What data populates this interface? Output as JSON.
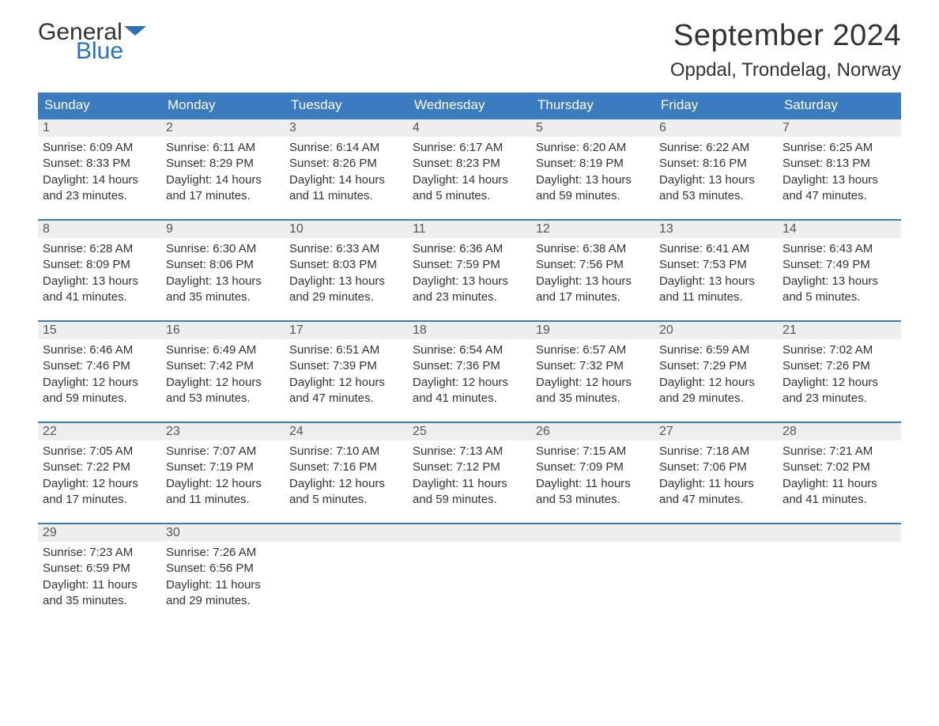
{
  "logo": {
    "text_general": "General",
    "text_blue": "Blue",
    "flag_color": "#2a72b5",
    "general_color": "#333333",
    "blue_color": "#2a72b5"
  },
  "header": {
    "month_title": "September 2024",
    "location": "Oppdal, Trondelag, Norway"
  },
  "colors": {
    "header_bg": "#3b7bbf",
    "header_text": "#ffffff",
    "daynum_bg": "#eeeeee",
    "daynum_text": "#555555",
    "body_text": "#333333",
    "row_border": "#3b7bbf",
    "background": "#ffffff"
  },
  "typography": {
    "month_title_size": 38,
    "location_size": 24,
    "header_cell_size": 17,
    "daynum_size": 16,
    "content_size": 15
  },
  "calendar": {
    "type": "table",
    "days_of_week": [
      "Sunday",
      "Monday",
      "Tuesday",
      "Wednesday",
      "Thursday",
      "Friday",
      "Saturday"
    ],
    "weeks": [
      [
        {
          "num": "1",
          "sunrise": "Sunrise: 6:09 AM",
          "sunset": "Sunset: 8:33 PM",
          "daylight1": "Daylight: 14 hours",
          "daylight2": "and 23 minutes."
        },
        {
          "num": "2",
          "sunrise": "Sunrise: 6:11 AM",
          "sunset": "Sunset: 8:29 PM",
          "daylight1": "Daylight: 14 hours",
          "daylight2": "and 17 minutes."
        },
        {
          "num": "3",
          "sunrise": "Sunrise: 6:14 AM",
          "sunset": "Sunset: 8:26 PM",
          "daylight1": "Daylight: 14 hours",
          "daylight2": "and 11 minutes."
        },
        {
          "num": "4",
          "sunrise": "Sunrise: 6:17 AM",
          "sunset": "Sunset: 8:23 PM",
          "daylight1": "Daylight: 14 hours",
          "daylight2": "and 5 minutes."
        },
        {
          "num": "5",
          "sunrise": "Sunrise: 6:20 AM",
          "sunset": "Sunset: 8:19 PM",
          "daylight1": "Daylight: 13 hours",
          "daylight2": "and 59 minutes."
        },
        {
          "num": "6",
          "sunrise": "Sunrise: 6:22 AM",
          "sunset": "Sunset: 8:16 PM",
          "daylight1": "Daylight: 13 hours",
          "daylight2": "and 53 minutes."
        },
        {
          "num": "7",
          "sunrise": "Sunrise: 6:25 AM",
          "sunset": "Sunset: 8:13 PM",
          "daylight1": "Daylight: 13 hours",
          "daylight2": "and 47 minutes."
        }
      ],
      [
        {
          "num": "8",
          "sunrise": "Sunrise: 6:28 AM",
          "sunset": "Sunset: 8:09 PM",
          "daylight1": "Daylight: 13 hours",
          "daylight2": "and 41 minutes."
        },
        {
          "num": "9",
          "sunrise": "Sunrise: 6:30 AM",
          "sunset": "Sunset: 8:06 PM",
          "daylight1": "Daylight: 13 hours",
          "daylight2": "and 35 minutes."
        },
        {
          "num": "10",
          "sunrise": "Sunrise: 6:33 AM",
          "sunset": "Sunset: 8:03 PM",
          "daylight1": "Daylight: 13 hours",
          "daylight2": "and 29 minutes."
        },
        {
          "num": "11",
          "sunrise": "Sunrise: 6:36 AM",
          "sunset": "Sunset: 7:59 PM",
          "daylight1": "Daylight: 13 hours",
          "daylight2": "and 23 minutes."
        },
        {
          "num": "12",
          "sunrise": "Sunrise: 6:38 AM",
          "sunset": "Sunset: 7:56 PM",
          "daylight1": "Daylight: 13 hours",
          "daylight2": "and 17 minutes."
        },
        {
          "num": "13",
          "sunrise": "Sunrise: 6:41 AM",
          "sunset": "Sunset: 7:53 PM",
          "daylight1": "Daylight: 13 hours",
          "daylight2": "and 11 minutes."
        },
        {
          "num": "14",
          "sunrise": "Sunrise: 6:43 AM",
          "sunset": "Sunset: 7:49 PM",
          "daylight1": "Daylight: 13 hours",
          "daylight2": "and 5 minutes."
        }
      ],
      [
        {
          "num": "15",
          "sunrise": "Sunrise: 6:46 AM",
          "sunset": "Sunset: 7:46 PM",
          "daylight1": "Daylight: 12 hours",
          "daylight2": "and 59 minutes."
        },
        {
          "num": "16",
          "sunrise": "Sunrise: 6:49 AM",
          "sunset": "Sunset: 7:42 PM",
          "daylight1": "Daylight: 12 hours",
          "daylight2": "and 53 minutes."
        },
        {
          "num": "17",
          "sunrise": "Sunrise: 6:51 AM",
          "sunset": "Sunset: 7:39 PM",
          "daylight1": "Daylight: 12 hours",
          "daylight2": "and 47 minutes."
        },
        {
          "num": "18",
          "sunrise": "Sunrise: 6:54 AM",
          "sunset": "Sunset: 7:36 PM",
          "daylight1": "Daylight: 12 hours",
          "daylight2": "and 41 minutes."
        },
        {
          "num": "19",
          "sunrise": "Sunrise: 6:57 AM",
          "sunset": "Sunset: 7:32 PM",
          "daylight1": "Daylight: 12 hours",
          "daylight2": "and 35 minutes."
        },
        {
          "num": "20",
          "sunrise": "Sunrise: 6:59 AM",
          "sunset": "Sunset: 7:29 PM",
          "daylight1": "Daylight: 12 hours",
          "daylight2": "and 29 minutes."
        },
        {
          "num": "21",
          "sunrise": "Sunrise: 7:02 AM",
          "sunset": "Sunset: 7:26 PM",
          "daylight1": "Daylight: 12 hours",
          "daylight2": "and 23 minutes."
        }
      ],
      [
        {
          "num": "22",
          "sunrise": "Sunrise: 7:05 AM",
          "sunset": "Sunset: 7:22 PM",
          "daylight1": "Daylight: 12 hours",
          "daylight2": "and 17 minutes."
        },
        {
          "num": "23",
          "sunrise": "Sunrise: 7:07 AM",
          "sunset": "Sunset: 7:19 PM",
          "daylight1": "Daylight: 12 hours",
          "daylight2": "and 11 minutes."
        },
        {
          "num": "24",
          "sunrise": "Sunrise: 7:10 AM",
          "sunset": "Sunset: 7:16 PM",
          "daylight1": "Daylight: 12 hours",
          "daylight2": "and 5 minutes."
        },
        {
          "num": "25",
          "sunrise": "Sunrise: 7:13 AM",
          "sunset": "Sunset: 7:12 PM",
          "daylight1": "Daylight: 11 hours",
          "daylight2": "and 59 minutes."
        },
        {
          "num": "26",
          "sunrise": "Sunrise: 7:15 AM",
          "sunset": "Sunset: 7:09 PM",
          "daylight1": "Daylight: 11 hours",
          "daylight2": "and 53 minutes."
        },
        {
          "num": "27",
          "sunrise": "Sunrise: 7:18 AM",
          "sunset": "Sunset: 7:06 PM",
          "daylight1": "Daylight: 11 hours",
          "daylight2": "and 47 minutes."
        },
        {
          "num": "28",
          "sunrise": "Sunrise: 7:21 AM",
          "sunset": "Sunset: 7:02 PM",
          "daylight1": "Daylight: 11 hours",
          "daylight2": "and 41 minutes."
        }
      ],
      [
        {
          "num": "29",
          "sunrise": "Sunrise: 7:23 AM",
          "sunset": "Sunset: 6:59 PM",
          "daylight1": "Daylight: 11 hours",
          "daylight2": "and 35 minutes."
        },
        {
          "num": "30",
          "sunrise": "Sunrise: 7:26 AM",
          "sunset": "Sunset: 6:56 PM",
          "daylight1": "Daylight: 11 hours",
          "daylight2": "and 29 minutes."
        },
        {
          "empty": true
        },
        {
          "empty": true
        },
        {
          "empty": true
        },
        {
          "empty": true
        },
        {
          "empty": true
        }
      ]
    ]
  }
}
